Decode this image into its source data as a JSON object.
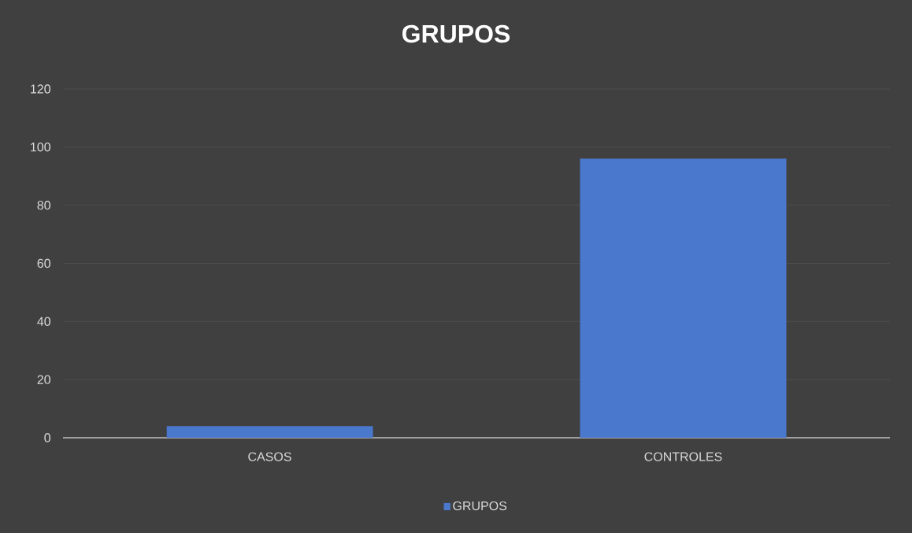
{
  "chart_data": {
    "type": "bar",
    "title": "GRUPOS",
    "categories": [
      "CASOS",
      "CONTROLES"
    ],
    "series": [
      {
        "name": "GRUPOS",
        "color": "#4a78cc",
        "values": [
          4,
          96
        ]
      }
    ],
    "ylim": [
      0,
      120
    ],
    "yticks": [
      0,
      20,
      40,
      60,
      80,
      100,
      120
    ],
    "grid": "y",
    "legend": "bottom"
  }
}
